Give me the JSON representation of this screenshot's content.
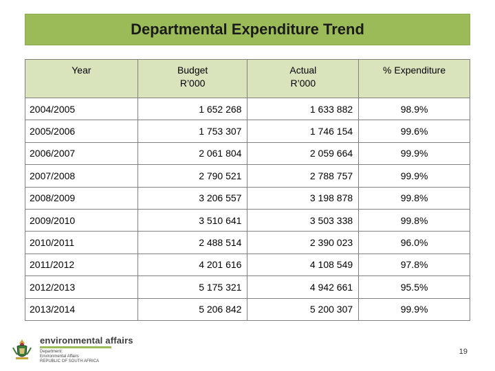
{
  "title": "Departmental Expenditure Trend",
  "table": {
    "headers": [
      {
        "lines": [
          "Year"
        ]
      },
      {
        "lines": [
          "Budget",
          "R’000"
        ]
      },
      {
        "lines": [
          "Actual",
          "R’000"
        ]
      },
      {
        "lines": [
          "% Expenditure"
        ]
      }
    ],
    "rows": [
      {
        "year": "2004/2005",
        "budget": "1 652 268",
        "actual": "1 633 882",
        "pct": "98.9%"
      },
      {
        "year": "2005/2006",
        "budget": "1 753 307",
        "actual": "1 746 154",
        "pct": "99.6%"
      },
      {
        "year": "2006/2007",
        "budget": "2 061 804",
        "actual": "2 059 664",
        "pct": "99.9%"
      },
      {
        "year": "2007/2008",
        "budget": "2 790 521",
        "actual": "2 788 757",
        "pct": "99.9%"
      },
      {
        "year": "2008/2009",
        "budget": "3 206 557",
        "actual": "3 198 878",
        "pct": "99.8%"
      },
      {
        "year": "2009/2010",
        "budget": "3 510 641",
        "actual": "3 503 338",
        "pct": "99.8%"
      },
      {
        "year": "2010/2011",
        "budget": "2 488 514",
        "actual": "2 390 023",
        "pct": "96.0%"
      },
      {
        "year": "2011/2012",
        "budget": "4 201 616",
        "actual": "4 108 549",
        "pct": "97.8%"
      },
      {
        "year": "2012/2013",
        "budget": "5 175 321",
        "actual": "4 942 661",
        "pct": "95.5%"
      },
      {
        "year": "2013/2014",
        "budget": "5 206 842",
        "actual": "5 200 307",
        "pct": "99.9%"
      }
    ]
  },
  "footer": {
    "logo_main": "environmental affairs",
    "logo_sub": [
      "Department:",
      "Environmental Affairs",
      "REPUBLIC OF SOUTH AFRICA"
    ],
    "crest_icon": "coat-of-arms-icon"
  },
  "page_number": "19",
  "colors": {
    "title_bar": "#9bbb59",
    "header_bg": "#d9e4bd",
    "border": "#7f7f7f"
  }
}
